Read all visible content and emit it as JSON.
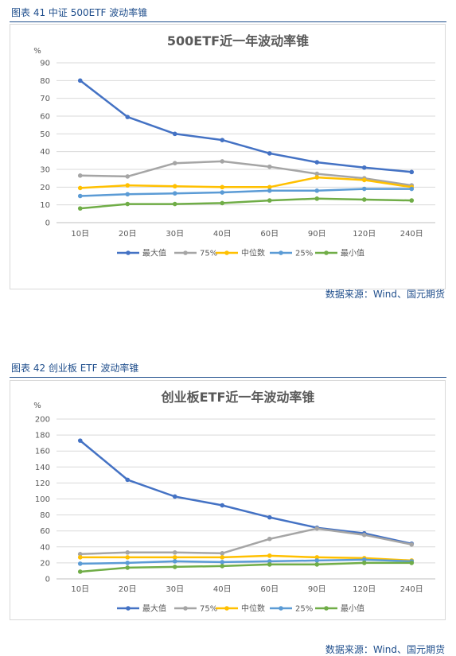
{
  "section_caption_1": "图表 41  中证 500ETF 波动率锥",
  "section_caption_2": "图表 42  创业板 ETF 波动率锥",
  "source_1": "数据来源：Wind、国元期货",
  "source_2": "数据来源：Wind、国元期货",
  "colors": {
    "max": "#4472c4",
    "p75": "#a5a5a5",
    "median": "#ffc000",
    "p25": "#5b9bd5",
    "min": "#70ad47",
    "grid": "#d9d9d9",
    "text": "#595959"
  },
  "chart_data": [
    {
      "type": "line",
      "title": "500ETF近一年波动率锥",
      "ylabel": "%",
      "xlabel": "",
      "categories": [
        "10日",
        "20日",
        "30日",
        "40日",
        "60日",
        "90日",
        "120日",
        "240日"
      ],
      "ylim": [
        0,
        90
      ],
      "yticks": [
        0,
        10,
        20,
        30,
        40,
        50,
        60,
        70,
        80,
        90
      ],
      "grid": true,
      "legend_position": "bottom",
      "series": [
        {
          "name": "最大值",
          "color": "#4472c4",
          "values": [
            80,
            59.5,
            50,
            46.5,
            39,
            34,
            31,
            28.5
          ]
        },
        {
          "name": "75%",
          "color": "#a5a5a5",
          "values": [
            26.5,
            26,
            33.5,
            34.5,
            31.5,
            27.5,
            25,
            21
          ]
        },
        {
          "name": "中位数",
          "color": "#ffc000",
          "values": [
            19.5,
            21,
            20.5,
            20,
            20,
            25.5,
            24,
            20
          ]
        },
        {
          "name": "25%",
          "color": "#5b9bd5",
          "values": [
            15,
            16,
            16.5,
            17,
            18,
            18,
            19,
            19
          ]
        },
        {
          "name": "最小值",
          "color": "#70ad47",
          "values": [
            8,
            10.5,
            10.5,
            11,
            12.5,
            13.5,
            13,
            12.5
          ]
        }
      ]
    },
    {
      "type": "line",
      "title": "创业板ETF近一年波动率锥",
      "ylabel": "%",
      "xlabel": "",
      "categories": [
        "10日",
        "20日",
        "30日",
        "40日",
        "60日",
        "90日",
        "120日",
        "240日"
      ],
      "ylim": [
        0,
        200
      ],
      "yticks": [
        0,
        20,
        40,
        60,
        80,
        100,
        120,
        140,
        160,
        180,
        200
      ],
      "grid": true,
      "legend_position": "bottom",
      "series": [
        {
          "name": "最大值",
          "color": "#4472c4",
          "values": [
            173,
            124,
            103,
            92,
            77,
            64,
            57,
            44
          ]
        },
        {
          "name": "75%",
          "color": "#a5a5a5",
          "values": [
            31,
            33,
            33,
            32,
            50,
            63,
            55,
            43
          ]
        },
        {
          "name": "中位数",
          "color": "#ffc000",
          "values": [
            27,
            27,
            27,
            27,
            29,
            27,
            26,
            23
          ]
        },
        {
          "name": "25%",
          "color": "#5b9bd5",
          "values": [
            19,
            20,
            22,
            21,
            22,
            23,
            24,
            22
          ]
        },
        {
          "name": "最小值",
          "color": "#70ad47",
          "values": [
            9,
            14,
            15,
            16,
            18,
            18,
            20,
            20
          ]
        }
      ]
    }
  ]
}
